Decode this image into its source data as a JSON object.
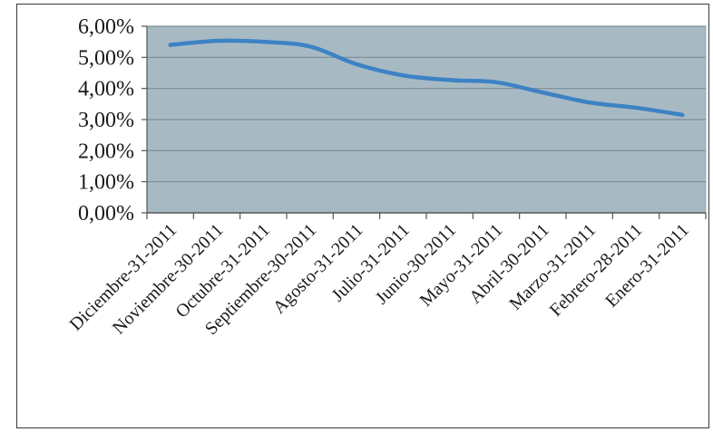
{
  "chart_data": {
    "type": "line",
    "title": "",
    "xlabel": "",
    "ylabel": "",
    "categories": [
      "Diciembre-31-2011",
      "Noviembre-30-2011",
      "Octubre-31-2011",
      "Septiembre-30-2011",
      "Agosto-31-2011",
      "Julio-31-2011",
      "Junio-30-2011",
      "Mayo-31-2011",
      "Abril-30-2011",
      "Marzo-31-2011",
      "Febrero-28-2011",
      "Enero-31-2011"
    ],
    "series": [
      {
        "values": [
          5.4,
          5.53,
          5.5,
          5.35,
          4.78,
          4.42,
          4.27,
          4.2,
          3.87,
          3.55,
          3.38,
          3.15
        ]
      }
    ],
    "y_ticks": [
      "0,00%",
      "1,00%",
      "2,00%",
      "3,00%",
      "4,00%",
      "5,00%",
      "6,00%"
    ],
    "ylim": [
      0,
      6
    ],
    "y_unit": "%",
    "grid": true,
    "legend": "none",
    "colors": {
      "plot_background": "#a7bac4",
      "line": "#3d82c4",
      "gridline": "#7f8c94",
      "axis": "#555555"
    }
  }
}
